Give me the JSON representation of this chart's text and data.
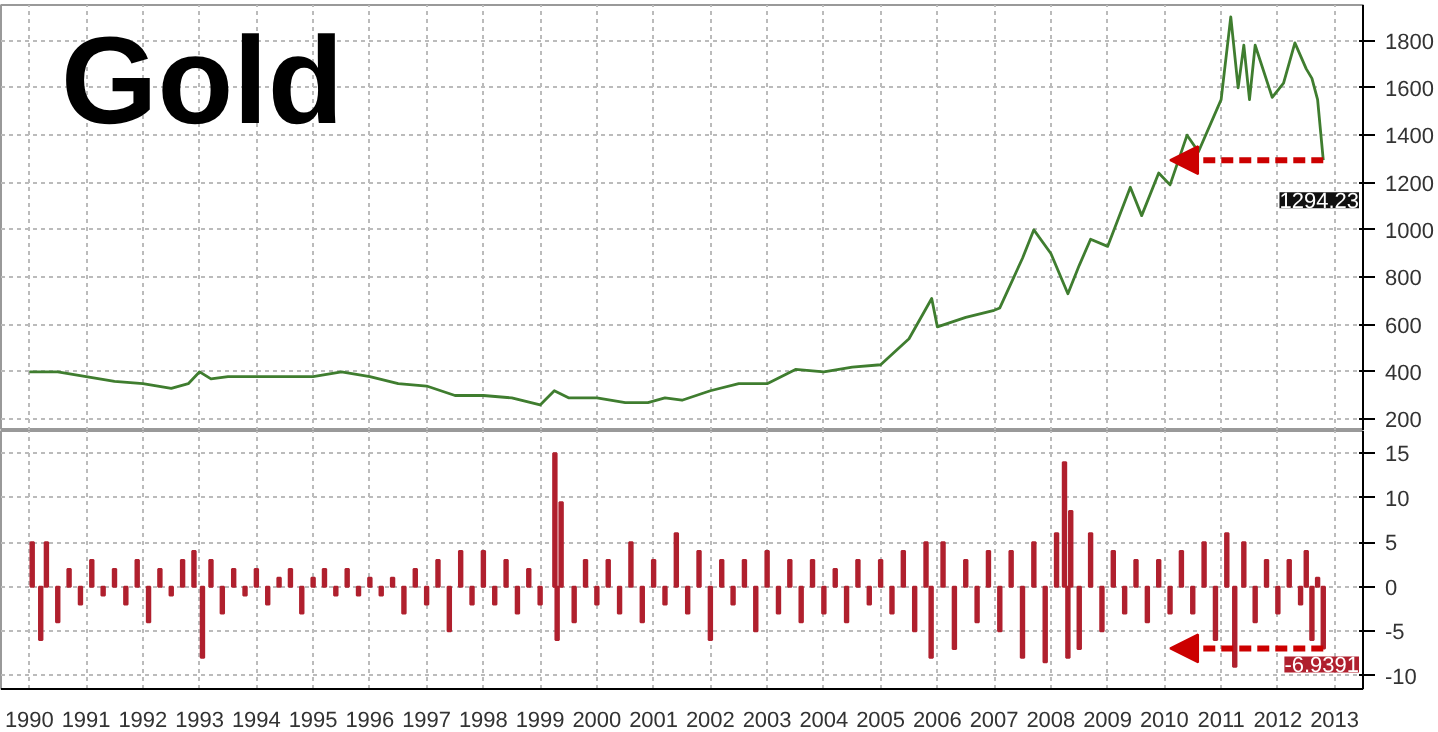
{
  "chart_data": [
    {
      "type": "line",
      "title": "Gold",
      "xlim": [
        1990.0,
        2014.0
      ],
      "ylim": [
        150,
        1950
      ],
      "yticks": [
        200,
        400,
        600,
        800,
        1000,
        1200,
        1400,
        1600,
        1800
      ],
      "xticks": [
        {
          "value": 1990.5,
          "label": null
        },
        {
          "value": 1991.5,
          "label": null
        },
        {
          "value": 1992.5,
          "label": null
        },
        {
          "value": 1993.5,
          "label": null
        },
        {
          "value": 1994.5,
          "label": null
        },
        {
          "value": 1995.5,
          "label": null
        },
        {
          "value": 1996.5,
          "label": null
        },
        {
          "value": 1997.5,
          "label": null
        },
        {
          "value": 1998.5,
          "label": null
        },
        {
          "value": 1999.5,
          "label": null
        },
        {
          "value": 2000.5,
          "label": null
        },
        {
          "value": 2001.5,
          "label": null
        },
        {
          "value": 2002.5,
          "label": null
        },
        {
          "value": 2003.5,
          "label": null
        },
        {
          "value": 2004.5,
          "label": null
        },
        {
          "value": 2005.5,
          "label": null
        },
        {
          "value": 2006.5,
          "label": null
        },
        {
          "value": 2007.5,
          "label": null
        },
        {
          "value": 2008.5,
          "label": null
        },
        {
          "value": 2009.5,
          "label": null
        },
        {
          "value": 2010.5,
          "label": null
        },
        {
          "value": 2011.5,
          "label": null
        },
        {
          "value": 2012.5,
          "label": null
        },
        {
          "value": 2013.5,
          "label": null
        }
      ],
      "tick_labels": "y",
      "grid": true,
      "series": [
        {
          "color": "#3f7d2f",
          "x": [
            1990.5,
            1991.0,
            1991.5,
            1992.0,
            1992.5,
            1993.0,
            1993.3,
            1993.5,
            1993.7,
            1994.0,
            1994.5,
            1995.0,
            1995.5,
            1996.0,
            1996.5,
            1997.0,
            1997.5,
            1998.0,
            1998.5,
            1999.0,
            1999.5,
            1999.75,
            2000.0,
            2000.5,
            2001.0,
            2001.4,
            2001.7,
            2002.0,
            2002.5,
            2003.0,
            2003.5,
            2004.0,
            2004.5,
            2005.0,
            2005.5,
            2006.0,
            2006.4,
            2006.5,
            2007.0,
            2007.5,
            2007.6,
            2008.0,
            2008.2,
            2008.5,
            2008.8,
            2009.0,
            2009.2,
            2009.5,
            2009.9,
            2010.1,
            2010.4,
            2010.6,
            2010.9,
            2011.1,
            2011.5,
            2011.67,
            2011.8,
            2011.9,
            2012.0,
            2012.1,
            2012.4,
            2012.6,
            2012.8,
            2013.0,
            2013.1,
            2013.2,
            2013.3
          ],
          "values": [
            400,
            400,
            380,
            360,
            350,
            330,
            350,
            400,
            370,
            380,
            380,
            380,
            380,
            400,
            380,
            350,
            340,
            300,
            300,
            290,
            260,
            320,
            290,
            290,
            270,
            270,
            290,
            280,
            320,
            350,
            350,
            410,
            400,
            420,
            430,
            540,
            710,
            590,
            630,
            660,
            670,
            880,
            1000,
            900,
            730,
            850,
            960,
            930,
            1180,
            1060,
            1240,
            1190,
            1400,
            1330,
            1550,
            1900,
            1600,
            1780,
            1550,
            1780,
            1560,
            1620,
            1790,
            1680,
            1640,
            1550,
            1294.23
          ]
        }
      ],
      "annotations": [
        {
          "text": "1294.23",
          "x": 2013.3,
          "y": 1294.23
        }
      ]
    },
    {
      "type": "bar",
      "xlim": [
        1990.0,
        2014.0
      ],
      "ylim": [
        -11.5,
        17.5
      ],
      "yticks": [
        -10,
        -5,
        0,
        5,
        10,
        15
      ],
      "xticks": [
        {
          "value": 1990.5,
          "label": "1990"
        },
        {
          "value": 1991.5,
          "label": "1991"
        },
        {
          "value": 1992.5,
          "label": "1992"
        },
        {
          "value": 1993.5,
          "label": "1993"
        },
        {
          "value": 1994.5,
          "label": "1994"
        },
        {
          "value": 1995.5,
          "label": "1995"
        },
        {
          "value": 1996.5,
          "label": "1996"
        },
        {
          "value": 1997.5,
          "label": "1997"
        },
        {
          "value": 1998.5,
          "label": "1998"
        },
        {
          "value": 1999.5,
          "label": "1999"
        },
        {
          "value": 2000.5,
          "label": "2000"
        },
        {
          "value": 2001.5,
          "label": "2001"
        },
        {
          "value": 2002.5,
          "label": "2002"
        },
        {
          "value": 2003.5,
          "label": "2003"
        },
        {
          "value": 2004.5,
          "label": "2004"
        },
        {
          "value": 2005.5,
          "label": "2005"
        },
        {
          "value": 2006.5,
          "label": "2006"
        },
        {
          "value": 2007.5,
          "label": "2007"
        },
        {
          "value": 2008.5,
          "label": "2008"
        },
        {
          "value": 2009.5,
          "label": "2009"
        },
        {
          "value": 2010.5,
          "label": "2010"
        },
        {
          "value": 2011.5,
          "label": "2011"
        },
        {
          "value": 2012.5,
          "label": "2012"
        },
        {
          "value": 2013.5,
          "label": "2013"
        }
      ],
      "grid": true,
      "series": [
        {
          "color": "#b0202e",
          "x": [
            1990.55,
            1990.7,
            1990.8,
            1991.0,
            1991.2,
            1991.4,
            1991.6,
            1991.8,
            1992.0,
            1992.2,
            1992.4,
            1992.6,
            1992.8,
            1993.0,
            1993.2,
            1993.4,
            1993.55,
            1993.7,
            1993.9,
            1994.1,
            1994.3,
            1994.5,
            1994.7,
            1994.9,
            1995.1,
            1995.3,
            1995.5,
            1995.7,
            1995.9,
            1996.1,
            1996.3,
            1996.5,
            1996.7,
            1996.9,
            1997.1,
            1997.3,
            1997.5,
            1997.7,
            1997.9,
            1998.1,
            1998.3,
            1998.5,
            1998.7,
            1998.9,
            1999.1,
            1999.3,
            1999.5,
            1999.76,
            1999.8,
            1999.87,
            2000.1,
            2000.3,
            2000.5,
            2000.7,
            2000.9,
            2001.1,
            2001.3,
            2001.5,
            2001.7,
            2001.9,
            2002.1,
            2002.3,
            2002.5,
            2002.7,
            2002.9,
            2003.1,
            2003.3,
            2003.5,
            2003.7,
            2003.9,
            2004.1,
            2004.3,
            2004.5,
            2004.7,
            2004.9,
            2005.1,
            2005.3,
            2005.5,
            2005.7,
            2005.9,
            2006.1,
            2006.3,
            2006.39,
            2006.6,
            2006.8,
            2007.0,
            2007.2,
            2007.4,
            2007.6,
            2007.8,
            2008.0,
            2008.2,
            2008.4,
            2008.6,
            2008.74,
            2008.8,
            2008.85,
            2009.0,
            2009.2,
            2009.4,
            2009.6,
            2009.8,
            2010.0,
            2010.2,
            2010.4,
            2010.6,
            2010.8,
            2011.0,
            2011.2,
            2011.4,
            2011.6,
            2011.74,
            2011.9,
            2012.1,
            2012.3,
            2012.5,
            2012.7,
            2012.9,
            2013.0,
            2013.1,
            2013.2,
            2013.3
          ],
          "values": [
            5,
            -6,
            5,
            -4,
            2,
            -2,
            3,
            -1,
            2,
            -2,
            3,
            -4,
            2,
            -1,
            3,
            4,
            -8,
            3,
            -3,
            2,
            -1,
            2,
            -2,
            1,
            2,
            -3,
            1,
            2,
            -1,
            2,
            -1,
            1,
            -1,
            1,
            -3,
            2,
            -2,
            3,
            -5,
            4,
            -2,
            4,
            -2,
            3,
            -3,
            2,
            -2,
            15,
            -6,
            9.5,
            -4,
            3,
            -2,
            3,
            -3,
            5,
            -4,
            3,
            -2,
            6,
            -3,
            4,
            -6,
            3,
            -2,
            3,
            -5,
            4,
            -3,
            3,
            -4,
            3,
            -3,
            2,
            -4,
            3,
            -2,
            3,
            -3,
            4,
            -5,
            5,
            -8,
            5,
            -7,
            3,
            -4,
            4,
            -5,
            4,
            -8,
            5,
            -8.5,
            6,
            14,
            -8,
            8.5,
            -7,
            6,
            -5,
            4,
            -3,
            3,
            -4,
            3,
            -3,
            4,
            -3,
            5,
            -6,
            6,
            -9,
            5,
            -4,
            3,
            -3,
            3,
            -2,
            4,
            -6,
            1,
            -6.9391
          ]
        }
      ],
      "annotations": [
        {
          "text": "-6.9391",
          "x": 2013.3,
          "y": -6.9391
        }
      ]
    }
  ]
}
